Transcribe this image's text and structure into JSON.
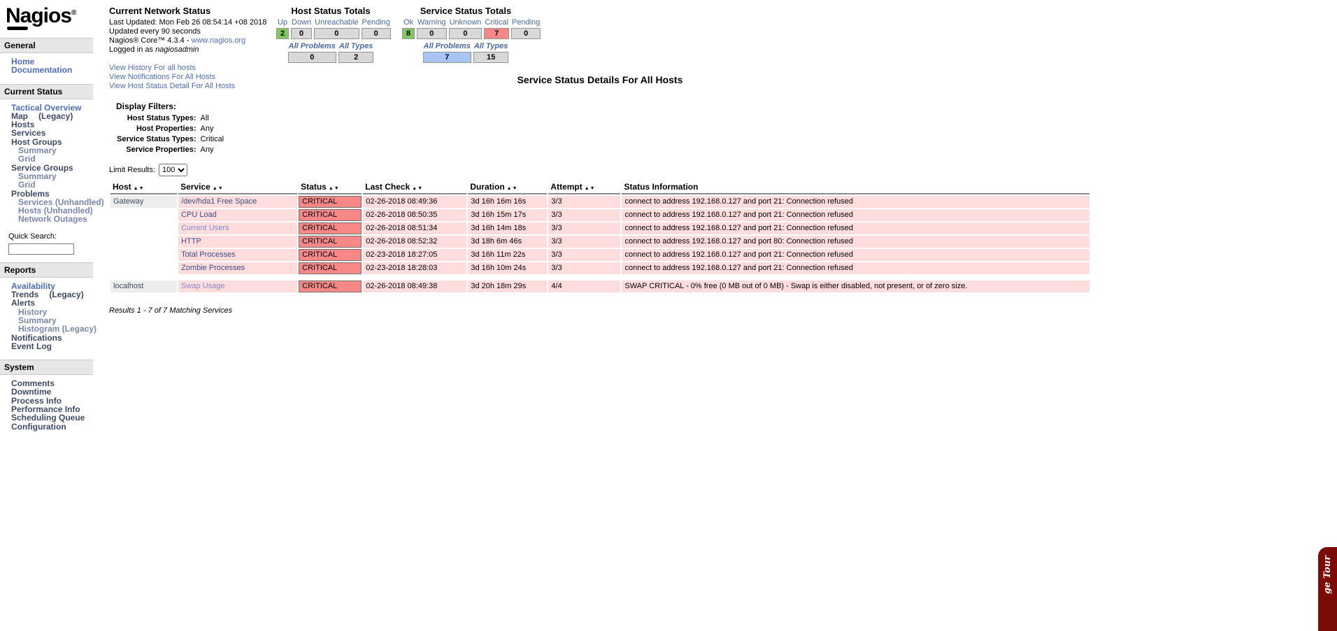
{
  "logo": {
    "text": "Nagios",
    "registered": "®"
  },
  "sidebar": {
    "sections": [
      {
        "title": "General",
        "items": [
          {
            "label": "Home",
            "tone": "bright",
            "level": 1
          },
          {
            "label": "Documentation",
            "tone": "bright",
            "level": 1
          }
        ]
      },
      {
        "title": "Current Status",
        "items": [
          {
            "label": "Tactical Overview",
            "tone": "bright",
            "level": 1
          },
          {
            "label": "Map",
            "suffix": "(Legacy)",
            "gap": true,
            "tone": "dark",
            "level": 1
          },
          {
            "label": "Hosts",
            "tone": "dark",
            "level": 1
          },
          {
            "label": "Services",
            "tone": "dark",
            "level": 1
          },
          {
            "label": "Host Groups",
            "tone": "dark",
            "level": 1
          },
          {
            "label": "Summary",
            "tone": "sub",
            "level": 2
          },
          {
            "label": "Grid",
            "tone": "sub",
            "level": 2
          },
          {
            "label": "Service Groups",
            "tone": "dark",
            "level": 1
          },
          {
            "label": "Summary",
            "tone": "sub",
            "level": 2
          },
          {
            "label": "Grid",
            "tone": "sub",
            "level": 2
          },
          {
            "label": "Problems",
            "tone": "dark",
            "level": 1
          },
          {
            "label": "Services (Unhandled)",
            "tone": "sub",
            "level": 2
          },
          {
            "label": "Hosts (Unhandled)",
            "tone": "sub",
            "level": 2
          },
          {
            "label": "Network Outages",
            "tone": "sub",
            "level": 2
          }
        ],
        "quick_search_label": "Quick Search:"
      },
      {
        "title": "Reports",
        "items": [
          {
            "label": "Availability",
            "tone": "bright",
            "level": 1
          },
          {
            "label": "Trends",
            "suffix": "(Legacy)",
            "gap": true,
            "tone": "dark",
            "level": 1
          },
          {
            "label": "Alerts",
            "tone": "dark",
            "level": 1
          },
          {
            "label": "History",
            "tone": "sub",
            "level": 2
          },
          {
            "label": "Summary",
            "tone": "sub",
            "level": 2
          },
          {
            "label": "Histogram (Legacy)",
            "tone": "sub",
            "level": 2
          },
          {
            "label": "Notifications",
            "tone": "dark",
            "level": 1
          },
          {
            "label": "Event Log",
            "tone": "dark",
            "level": 1
          }
        ]
      },
      {
        "title": "System",
        "items": [
          {
            "label": "Comments",
            "tone": "dark",
            "level": 1
          },
          {
            "label": "Downtime",
            "tone": "dark",
            "level": 1
          },
          {
            "label": "Process Info",
            "tone": "dark",
            "level": 1
          },
          {
            "label": "Performance Info",
            "tone": "dark",
            "level": 1
          },
          {
            "label": "Scheduling Queue",
            "tone": "dark",
            "level": 1
          },
          {
            "label": "Configuration",
            "tone": "dark",
            "level": 1
          }
        ]
      }
    ]
  },
  "network_status": {
    "title": "Current Network Status",
    "lines": [
      "Last Updated: Mon Feb 26 08:54:14 +08 2018",
      "Updated every 90 seconds"
    ],
    "core_line_prefix": "Nagios® Core™ 4.3.4 - ",
    "core_link": "www.nagios.org",
    "logged_in_prefix": "Logged in as ",
    "logged_in_user": "nagiosadmin",
    "links": [
      "View History For all hosts",
      "View Notifications For All Hosts",
      "View Host Status Detail For All Hosts"
    ],
    "filters": {
      "title": "Display Filters:",
      "rows": [
        {
          "label": "Host Status Types:",
          "value": "All"
        },
        {
          "label": "Host Properties:",
          "value": "Any"
        },
        {
          "label": "Service Status Types:",
          "value": "Critical"
        },
        {
          "label": "Service Properties:",
          "value": "Any"
        }
      ]
    }
  },
  "host_totals": {
    "title": "Host Status Totals",
    "columns": [
      {
        "label": "Up",
        "value": "2",
        "state": "ok"
      },
      {
        "label": "Down",
        "value": "0",
        "state": "none"
      },
      {
        "label": "Unreachable",
        "value": "0",
        "state": "none"
      },
      {
        "label": "Pending",
        "value": "0",
        "state": "none"
      }
    ],
    "summary": [
      {
        "label": "All Problems",
        "value": "0",
        "state": "none"
      },
      {
        "label": "All Types",
        "value": "2",
        "state": "none"
      }
    ]
  },
  "service_totals": {
    "title": "Service Status Totals",
    "columns": [
      {
        "label": "Ok",
        "value": "8",
        "state": "ok"
      },
      {
        "label": "Warning",
        "value": "0",
        "state": "none"
      },
      {
        "label": "Unknown",
        "value": "0",
        "state": "none"
      },
      {
        "label": "Critical",
        "value": "7",
        "state": "critical"
      },
      {
        "label": "Pending",
        "value": "0",
        "state": "none"
      }
    ],
    "summary": [
      {
        "label": "All Problems",
        "value": "7",
        "state": "problems"
      },
      {
        "label": "All Types",
        "value": "15",
        "state": "none"
      }
    ]
  },
  "page_title": "Service Status Details For All Hosts",
  "table": {
    "limit_label": "Limit Results:",
    "limit_value": "100",
    "columns": [
      {
        "label": "Host",
        "sortable": true
      },
      {
        "label": "Service",
        "sortable": true
      },
      {
        "label": "Status",
        "sortable": true
      },
      {
        "label": "Last Check",
        "sortable": true
      },
      {
        "label": "Duration",
        "sortable": true
      },
      {
        "label": "Attempt",
        "sortable": true
      },
      {
        "label": "Status Information",
        "sortable": false
      }
    ],
    "rows": [
      {
        "host": "Gateway",
        "separator_before": false,
        "service": "/dev/hda1 Free Space",
        "service_tone": "normal",
        "status": "CRITICAL",
        "last_check": "02-26-2018 08:49:36",
        "duration": "3d 16h 16m 16s",
        "attempt": "3/3",
        "info": "connect to address 192.168.0.127 and port 21: Connection refused"
      },
      {
        "host": "",
        "separator_before": false,
        "service": "CPU Load",
        "service_tone": "normal",
        "status": "CRITICAL",
        "last_check": "02-26-2018 08:50:35",
        "duration": "3d 16h 15m 17s",
        "attempt": "3/3",
        "info": "connect to address 192.168.0.127 and port 21: Connection refused"
      },
      {
        "host": "",
        "separator_before": false,
        "service": "Current Users",
        "service_tone": "visited",
        "status": "CRITICAL",
        "last_check": "02-26-2018 08:51:34",
        "duration": "3d 16h 14m 18s",
        "attempt": "3/3",
        "info": "connect to address 192.168.0.127 and port 21: Connection refused"
      },
      {
        "host": "",
        "separator_before": false,
        "service": "HTTP",
        "service_tone": "normal",
        "status": "CRITICAL",
        "last_check": "02-26-2018 08:52:32",
        "duration": "3d 18h 6m 46s",
        "attempt": "3/3",
        "info": "connect to address 192.168.0.127 and port 80: Connection refused"
      },
      {
        "host": "",
        "separator_before": false,
        "service": "Total Processes",
        "service_tone": "normal",
        "status": "CRITICAL",
        "last_check": "02-23-2018 18:27:05",
        "duration": "3d 16h 11m 22s",
        "attempt": "3/3",
        "info": "connect to address 192.168.0.127 and port 21: Connection refused"
      },
      {
        "host": "",
        "separator_before": false,
        "service": "Zombie Processes",
        "service_tone": "normal",
        "status": "CRITICAL",
        "last_check": "02-23-2018 18:28:03",
        "duration": "3d 16h 10m 24s",
        "attempt": "3/3",
        "info": "connect to address 192.168.0.127 and port 21: Connection refused"
      },
      {
        "host": "localhost",
        "separator_before": true,
        "service": "Swap Usage",
        "service_tone": "visited",
        "status": "CRITICAL",
        "last_check": "02-26-2018 08:49:38",
        "duration": "3d 20h 18m 29s",
        "attempt": "4/4",
        "info": "SWAP CRITICAL - 0% free (0 MB out of 0 MB) - Swap is either disabled, not present, or of zero size."
      }
    ],
    "results_text": "Results 1 - 7 of 7 Matching Services"
  },
  "ribbon": {
    "label": "ge Tour",
    "color": "#7A0B05"
  },
  "colors": {
    "status_ok_green": "#80C860",
    "status_critical_red": "#F88888",
    "all_problems_blue": "#A8C4F4",
    "totals_box_gray": "#D8D8D8",
    "row_pink": "#FFDDDD",
    "host_cell_gray": "#EDEDED",
    "link_blue": "#4F6DB4",
    "ribbon_maroon": "#7A0B05"
  }
}
